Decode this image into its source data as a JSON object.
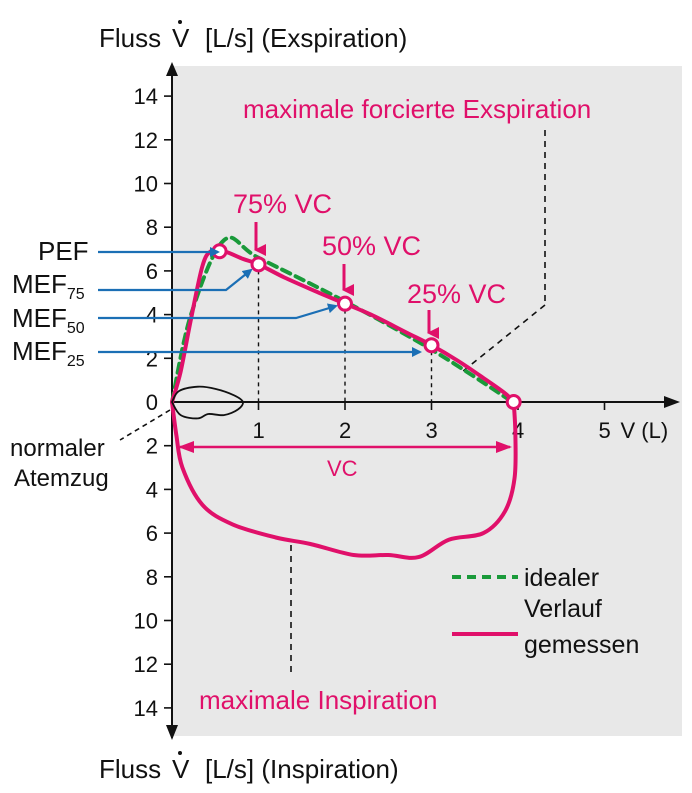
{
  "chart_data": {
    "type": "line",
    "title_top": "Fluss",
    "title_top_symbol": "V",
    "title_top_unit": "[L/s] (Exspiration)",
    "title_bottom": "Fluss",
    "title_bottom_symbol": "V",
    "title_bottom_unit": "[L/s] (Inspiration)",
    "xlabel": "V (L)",
    "x_ticks": [
      "1",
      "2",
      "3",
      "4",
      "5"
    ],
    "y_ticks_expiration": [
      "2",
      "4",
      "6",
      "8",
      "10",
      "12",
      "14"
    ],
    "y_ticks_inspiration": [
      "2",
      "4",
      "6",
      "8",
      "10",
      "12",
      "14"
    ],
    "y_zero_label": "0",
    "xlim": [
      0,
      5.8
    ],
    "ylim": [
      -15,
      15
    ],
    "annotations": {
      "max_exp": "maximale forcierte Exspiration",
      "max_insp": "maximale Inspiration",
      "vc75": "75% VC",
      "vc50": "50% VC",
      "vc25": "25% VC",
      "vc": "VC",
      "normal_line1": "normaler",
      "normal_line2": "Atemzug"
    },
    "left_labels": {
      "pef": "PEF",
      "mef_base": "MEF",
      "mef75_sub": "75",
      "mef50_sub": "50",
      "mef25_sub": "25"
    },
    "legend": {
      "ideal_line1": "idealer",
      "ideal_line2": "Verlauf",
      "measured": "gemessen"
    },
    "series": [
      {
        "name": "idealer Verlauf",
        "color": "#1a9a3a",
        "style": "dashed",
        "points": [
          [
            0,
            0
          ],
          [
            0.22,
            4.0
          ],
          [
            0.6,
            7.4
          ],
          [
            1.0,
            6.6
          ],
          [
            2.0,
            4.6
          ],
          [
            3.0,
            2.4
          ],
          [
            3.9,
            0.1
          ]
        ]
      },
      {
        "name": "gemessen",
        "color": "#e0106a",
        "style": "solid",
        "points": [
          [
            0,
            0
          ],
          [
            0.1,
            1.4
          ],
          [
            0.22,
            3.8
          ],
          [
            0.35,
            6.2
          ],
          [
            0.45,
            6.9
          ],
          [
            0.6,
            6.9
          ],
          [
            0.82,
            6.55
          ],
          [
            1.0,
            6.3
          ],
          [
            1.3,
            5.7
          ],
          [
            1.7,
            5.0
          ],
          [
            2.0,
            4.5
          ],
          [
            2.3,
            4.0
          ],
          [
            2.7,
            3.2
          ],
          [
            3.0,
            2.6
          ],
          [
            3.3,
            1.9
          ],
          [
            3.6,
            1.1
          ],
          [
            3.85,
            0.4
          ],
          [
            3.95,
            0
          ]
        ]
      },
      {
        "name": "maximale Inspiration",
        "color": "#e0106a",
        "style": "solid",
        "points": [
          [
            3.95,
            0
          ],
          [
            3.97,
            -1.5
          ],
          [
            3.96,
            -3.5
          ],
          [
            3.85,
            -5.0
          ],
          [
            3.6,
            -6.0
          ],
          [
            3.2,
            -6.3
          ],
          [
            2.85,
            -7.1
          ],
          [
            2.5,
            -7.0
          ],
          [
            2.1,
            -7.0
          ],
          [
            1.6,
            -6.5
          ],
          [
            1.2,
            -6.2
          ],
          [
            0.7,
            -5.6
          ],
          [
            0.35,
            -4.7
          ],
          [
            0.12,
            -3.0
          ],
          [
            0.05,
            -1.5
          ],
          [
            0,
            0
          ]
        ]
      },
      {
        "name": "normaler Atemzug",
        "color": "#111111",
        "style": "solid",
        "points": [
          [
            0,
            0
          ],
          [
            0.08,
            0.5
          ],
          [
            0.3,
            0.7
          ],
          [
            0.5,
            0.6
          ],
          [
            0.72,
            0.3
          ],
          [
            0.82,
            0.0
          ],
          [
            0.76,
            -0.35
          ],
          [
            0.6,
            -0.6
          ],
          [
            0.42,
            -0.55
          ],
          [
            0.3,
            -0.75
          ],
          [
            0.1,
            -0.6
          ],
          [
            0,
            0
          ]
        ]
      }
    ],
    "markers": [
      {
        "x": 0.55,
        "y": 6.9
      },
      {
        "x": 1.0,
        "y": 6.3
      },
      {
        "x": 2.0,
        "y": 4.5
      },
      {
        "x": 3.0,
        "y": 2.6
      },
      {
        "x": 3.95,
        "y": 0
      }
    ]
  }
}
